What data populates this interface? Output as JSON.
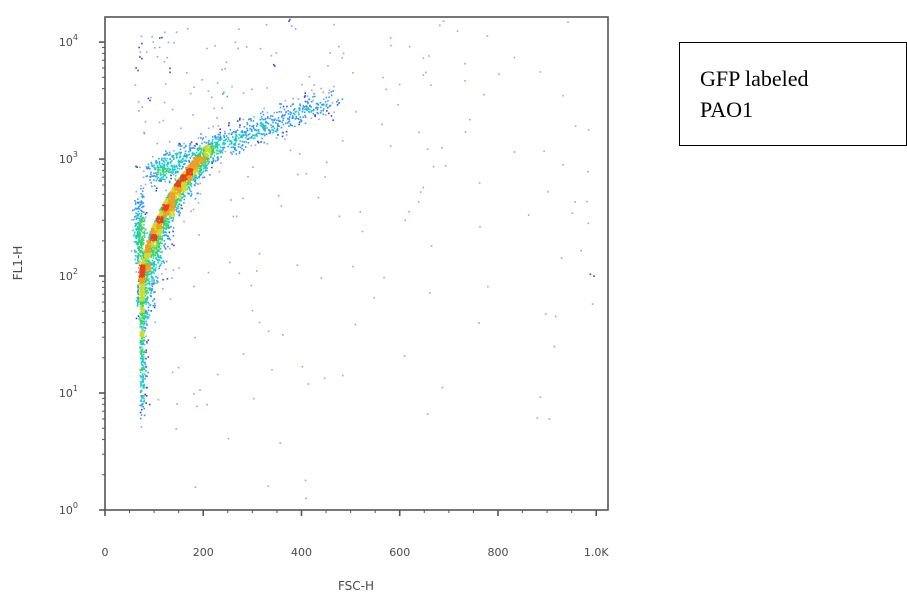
{
  "chart_data": {
    "type": "scatter",
    "subtype": "flow-cytometry density dot plot",
    "xlabel": "FSC-H",
    "ylabel": "FL1-H",
    "xscale": "linear",
    "yscale": "log",
    "xlim": [
      0,
      1024
    ],
    "ylim": [
      1,
      16384
    ],
    "x_ticks": [
      {
        "value": 0,
        "label": "0"
      },
      {
        "value": 200,
        "label": "200"
      },
      {
        "value": 400,
        "label": "400"
      },
      {
        "value": 600,
        "label": "600"
      },
      {
        "value": 800,
        "label": "800"
      },
      {
        "value": 1000,
        "label": "1.0K"
      }
    ],
    "y_ticks": [
      {
        "value": 1,
        "base": "10",
        "exp": "0"
      },
      {
        "value": 10,
        "base": "10",
        "exp": "1"
      },
      {
        "value": 100,
        "base": "10",
        "exp": "2"
      },
      {
        "value": 1000,
        "base": "10",
        "exp": "3"
      },
      {
        "value": 10000,
        "base": "10",
        "exp": "4"
      }
    ],
    "density_colormap": [
      "#1f33d6",
      "#1e90ff",
      "#12c9c9",
      "#35d46a",
      "#c9dc2a",
      "#f0a020",
      "#e8411b"
    ],
    "populations": [
      {
        "description": "main GFP-positive cluster",
        "x": 90,
        "y": 300,
        "count": 2600
      },
      {
        "description": "dense core",
        "x": 70,
        "y": 230,
        "count": 300
      },
      {
        "description": "upper diagonal tail",
        "x_range": [
          100,
          460
        ],
        "y_range": [
          700,
          4000
        ],
        "count": 900
      },
      {
        "description": "low-FL1 stem",
        "x": 75,
        "y_range": [
          5,
          120
        ],
        "count": 500
      },
      {
        "description": "sparse background events",
        "x_range": [
          60,
          1000
        ],
        "y_range": [
          1,
          16000
        ],
        "count": 260
      }
    ],
    "grid": false,
    "legend": "none"
  },
  "annotation": {
    "lines": [
      "GFP labeled",
      "PAO1"
    ]
  }
}
